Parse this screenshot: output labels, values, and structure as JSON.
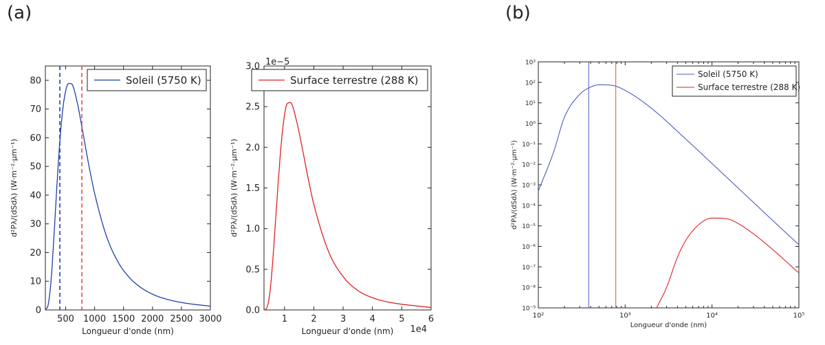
{
  "panels": {
    "a": "(a)",
    "b": "(b)"
  },
  "chart_data": [
    {
      "type": "line",
      "panel": "(a)",
      "title": "",
      "xlabel": "Longueur d'onde (nm)",
      "ylabel": "d²Pλ/(dSdλ)  (W·m⁻²·μm⁻¹)",
      "xlim": [
        150,
        3000
      ],
      "ylim": [
        0,
        85
      ],
      "xticks": [
        500,
        1000,
        1500,
        2000,
        2500,
        3000
      ],
      "yticks": [
        0,
        10,
        20,
        30,
        40,
        50,
        60,
        70,
        80
      ],
      "legend": "top-right",
      "series": [
        {
          "name": "Soleil (5750 K)",
          "color": "#1f3fa6",
          "x": [
            150,
            200,
            250,
            300,
            350,
            400,
            450,
            500,
            550,
            600,
            700,
            800,
            900,
            1000,
            1200,
            1400,
            1600,
            1800,
            2000,
            2200,
            2500,
            3000
          ],
          "y": [
            0.04,
            1.98,
            10.7,
            26.3,
            43.6,
            58.8,
            69.8,
            76.2,
            78.9,
            78.8,
            72.3,
            61.6,
            50.5,
            40.7,
            26.0,
            16.9,
            11.3,
            7.8,
            5.5,
            4.0,
            2.6,
            1.3
          ]
        }
      ],
      "vlines": [
        {
          "x": 400,
          "color": "#1f3fa6",
          "style": "dashed"
        },
        {
          "x": 780,
          "color": "#e8474b",
          "style": "dashed"
        }
      ]
    },
    {
      "type": "line",
      "panel": "(a)",
      "title": "",
      "xlabel": "Longueur d'onde (nm)",
      "ylabel": "d²Pλ/(dSdλ)  (W·m⁻²·μm⁻¹)",
      "offset_label": "1e−5",
      "x_offset_label": "1e4",
      "xlim": [
        3000,
        60000
      ],
      "ylim": [
        0,
        3.0
      ],
      "xticks": [
        1,
        2,
        3,
        4,
        5,
        6
      ],
      "yticks": [
        "0.0",
        "0.5",
        "1.0",
        "1.5",
        "2.0",
        "2.5",
        "3.0"
      ],
      "legend": "top-right",
      "series": [
        {
          "name": "Surface terrestre (288 K)",
          "color": "#e02020",
          "x": [
            3000,
            4000,
            5000,
            6000,
            7000,
            8000,
            9000,
            10000,
            11000,
            12000,
            14000,
            16000,
            18000,
            20000,
            25000,
            30000,
            35000,
            40000,
            45000,
            50000,
            55000,
            60000
          ],
          "y": [
            0.0,
            0.03,
            0.21,
            0.61,
            1.13,
            1.64,
            2.09,
            2.4,
            2.54,
            2.55,
            2.34,
            2.0,
            1.63,
            1.3,
            0.72,
            0.41,
            0.24,
            0.15,
            0.1,
            0.07,
            0.05,
            0.03
          ]
        }
      ]
    },
    {
      "type": "line",
      "panel": "(b)",
      "title": "",
      "xlabel": "Longueur d'onde (nm)",
      "ylabel": "d²Pλ/(dSdλ)  (W·m⁻²·μm⁻¹)",
      "xscale": "log",
      "yscale": "log",
      "xlim": [
        100,
        100000
      ],
      "ylim": [
        1e-09,
        1000
      ],
      "xticks": [
        "10²",
        "10³",
        "10⁴",
        "10⁵"
      ],
      "yticks": [
        "10⁻⁹",
        "10⁻⁸",
        "10⁻⁷",
        "10⁻⁶",
        "10⁻⁵",
        "10⁻⁴",
        "10⁻³",
        "10⁻²",
        "10⁻¹",
        "10⁰",
        "10¹",
        "10²",
        "10³"
      ],
      "legend": "top-right",
      "series": [
        {
          "name": "Soleil (5750 K)",
          "color": "#4a5bbf",
          "x": [
            100,
            150,
            200,
            300,
            400,
            500,
            700,
            1000,
            2000,
            5000,
            10000,
            20000,
            50000,
            100000
          ],
          "y": [
            0.0005,
            0.04,
            2.0,
            26,
            59,
            76,
            72,
            40.7,
            5.5,
            0.17,
            0.011,
            0.0007,
            1.83e-05,
            1.2e-06
          ]
        },
        {
          "name": "Surface terrestre (288 K)",
          "color": "#e02020",
          "x": [
            2300,
            3000,
            4000,
            5000,
            7000,
            10000,
            15000,
            20000,
            30000,
            50000,
            100000
          ],
          "y": [
            1e-09,
            1e-08,
            3e-07,
            2e-06,
            1.13e-05,
            2.4e-05,
            2.2e-05,
            1.3e-05,
            4.1e-06,
            7e-07,
            5e-08
          ]
        }
      ],
      "vlines": [
        {
          "x": 380,
          "color": "#4a5bbf",
          "style": "solid"
        },
        {
          "x": 780,
          "color": "#e8474b",
          "style": "solid"
        }
      ]
    }
  ]
}
